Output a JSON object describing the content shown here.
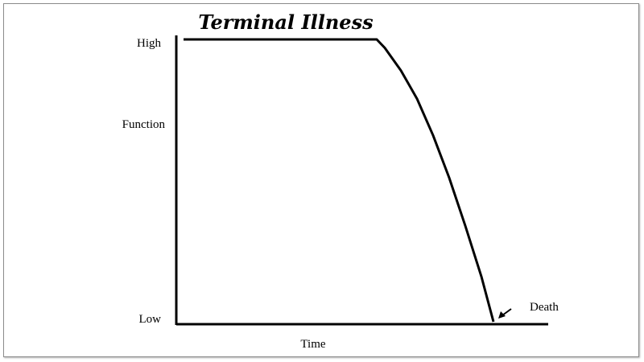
{
  "chart_data": {
    "type": "line",
    "title": "Terminal Illness",
    "xlabel": "Time",
    "ylabel": "Function",
    "y_tick_labels": [
      "High",
      "Low"
    ],
    "x_range": [
      0,
      100
    ],
    "y_range": [
      0,
      1
    ],
    "series": [
      {
        "x": [
          0,
          48,
          50,
          54,
          58,
          62,
          66,
          70,
          74,
          77
        ],
        "y": [
          1.0,
          1.0,
          0.97,
          0.89,
          0.79,
          0.66,
          0.51,
          0.34,
          0.16,
          0.0
        ]
      }
    ],
    "annotations": [
      {
        "text": "Death",
        "x": 77,
        "y": 0.0,
        "arrow": true
      }
    ],
    "grid": false
  },
  "colors": {
    "line": "#000000",
    "axis": "#000000",
    "frame": "#8c8c8c"
  }
}
